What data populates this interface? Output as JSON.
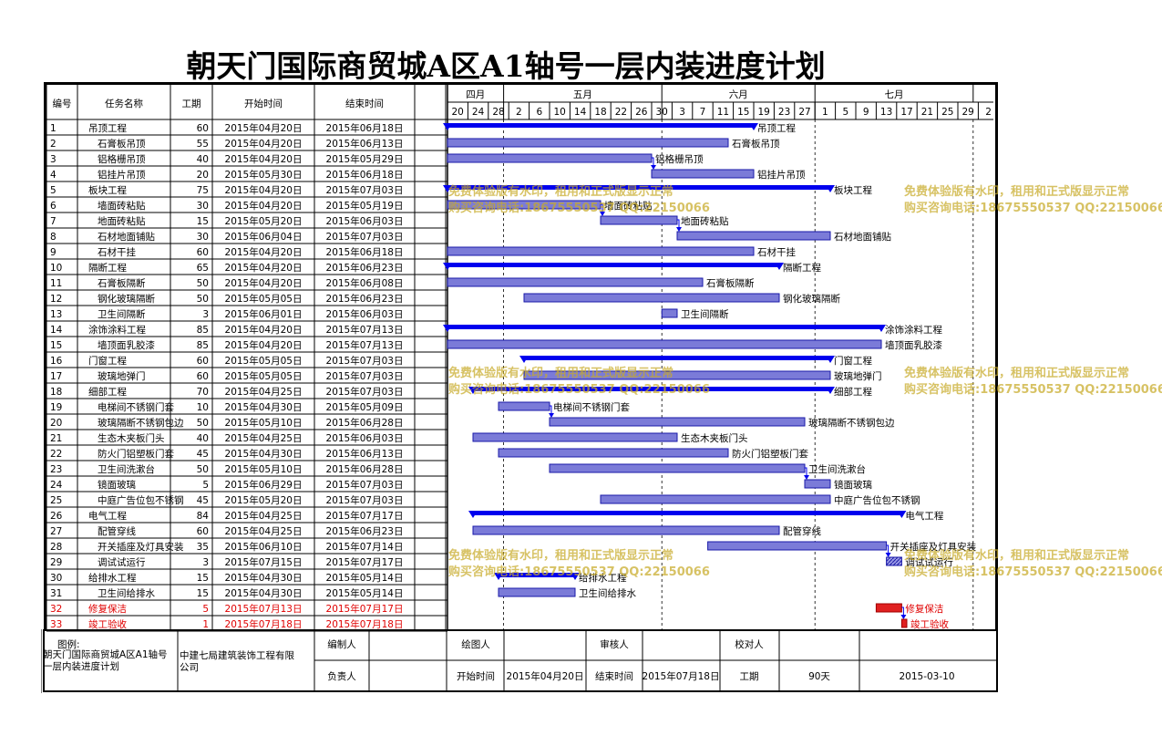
{
  "title": "朝天门国际商贸城A区A1轴号一层内装进度计划",
  "headers": {
    "no": "编号",
    "name": "任务名称",
    "dur": "工期",
    "start": "开始时间",
    "end": "结束时间"
  },
  "months": [
    {
      "label": "四月"
    },
    {
      "label": "五月"
    },
    {
      "label": "六月"
    },
    {
      "label": "七月"
    }
  ],
  "days": [
    "20",
    "24",
    "28",
    "2",
    "6",
    "10",
    "14",
    "18",
    "22",
    "26",
    "30",
    "3",
    "7",
    "11",
    "15",
    "19",
    "23",
    "27",
    "1",
    "5",
    "9",
    "13",
    "17",
    "21",
    "25",
    "29",
    "2"
  ],
  "timeline": {
    "start": "2015-04-20",
    "end": "2015-08-05"
  },
  "tasks": [
    {
      "no": "1",
      "name": "吊顶工程",
      "dur": "60",
      "start": "2015年04月20日",
      "end": "2015年06月18日",
      "s": "2015-04-20",
      "e": "2015-06-18",
      "summary": true,
      "level": 0,
      "label": "吊顶工程"
    },
    {
      "no": "2",
      "name": "石膏板吊顶",
      "dur": "55",
      "start": "2015年04月20日",
      "end": "2015年06月13日",
      "s": "2015-04-20",
      "e": "2015-06-13",
      "level": 1,
      "label": "石膏板吊顶"
    },
    {
      "no": "3",
      "name": "铝格栅吊顶",
      "dur": "40",
      "start": "2015年04月20日",
      "end": "2015年05月29日",
      "s": "2015-04-20",
      "e": "2015-05-29",
      "level": 1,
      "label": "铝格栅吊顶",
      "link": true
    },
    {
      "no": "4",
      "name": "铝挂片吊顶",
      "dur": "20",
      "start": "2015年05月30日",
      "end": "2015年06月18日",
      "s": "2015-05-30",
      "e": "2015-06-18",
      "level": 1,
      "label": "铝挂片吊顶"
    },
    {
      "no": "5",
      "name": "板块工程",
      "dur": "75",
      "start": "2015年04月20日",
      "end": "2015年07月03日",
      "s": "2015-04-20",
      "e": "2015-07-03",
      "summary": true,
      "level": 0,
      "label": "板块工程"
    },
    {
      "no": "6",
      "name": "墙面砖粘贴",
      "dur": "30",
      "start": "2015年04月20日",
      "end": "2015年05月19日",
      "s": "2015-04-20",
      "e": "2015-05-19",
      "level": 1,
      "label": "墙面砖粘贴",
      "link": true
    },
    {
      "no": "7",
      "name": "地面砖粘贴",
      "dur": "15",
      "start": "2015年05月20日",
      "end": "2015年06月03日",
      "s": "2015-05-20",
      "e": "2015-06-03",
      "level": 1,
      "label": "地面砖粘贴",
      "link": true
    },
    {
      "no": "8",
      "name": "石材地面铺贴",
      "dur": "30",
      "start": "2015年06月04日",
      "end": "2015年07月03日",
      "s": "2015-06-04",
      "e": "2015-07-03",
      "level": 1,
      "label": "石材地面铺贴"
    },
    {
      "no": "9",
      "name": "石材干挂",
      "dur": "60",
      "start": "2015年04月20日",
      "end": "2015年06月18日",
      "s": "2015-04-20",
      "e": "2015-06-18",
      "level": 1,
      "label": "石材干挂"
    },
    {
      "no": "10",
      "name": "隔断工程",
      "dur": "65",
      "start": "2015年04月20日",
      "end": "2015年06月23日",
      "s": "2015-04-20",
      "e": "2015-06-23",
      "summary": true,
      "level": 0,
      "label": "隔断工程"
    },
    {
      "no": "11",
      "name": "石膏板隔断",
      "dur": "50",
      "start": "2015年04月20日",
      "end": "2015年06月08日",
      "s": "2015-04-20",
      "e": "2015-06-08",
      "level": 1,
      "label": "石膏板隔断"
    },
    {
      "no": "12",
      "name": "钢化玻璃隔断",
      "dur": "50",
      "start": "2015年05月05日",
      "end": "2015年06月23日",
      "s": "2015-05-05",
      "e": "2015-06-23",
      "level": 1,
      "label": "钢化玻璃隔断"
    },
    {
      "no": "13",
      "name": "卫生间隔断",
      "dur": "3",
      "start": "2015年06月01日",
      "end": "2015年06月03日",
      "s": "2015-06-01",
      "e": "2015-06-03",
      "level": 1,
      "label": "卫生间隔断"
    },
    {
      "no": "14",
      "name": "涂饰涂料工程",
      "dur": "85",
      "start": "2015年04月20日",
      "end": "2015年07月13日",
      "s": "2015-04-20",
      "e": "2015-07-13",
      "summary": true,
      "level": 0,
      "label": "涂饰涂料工程"
    },
    {
      "no": "15",
      "name": "墙顶面乳胶漆",
      "dur": "85",
      "start": "2015年04月20日",
      "end": "2015年07月13日",
      "s": "2015-04-20",
      "e": "2015-07-13",
      "level": 1,
      "label": "墙顶面乳胶漆"
    },
    {
      "no": "16",
      "name": "门窗工程",
      "dur": "60",
      "start": "2015年05月05日",
      "end": "2015年07月03日",
      "s": "2015-05-05",
      "e": "2015-07-03",
      "summary": true,
      "level": 0,
      "label": "门窗工程"
    },
    {
      "no": "17",
      "name": "玻璃地弹门",
      "dur": "60",
      "start": "2015年05月05日",
      "end": "2015年07月03日",
      "s": "2015-05-05",
      "e": "2015-07-03",
      "level": 1,
      "label": "玻璃地弹门"
    },
    {
      "no": "18",
      "name": "细部工程",
      "dur": "70",
      "start": "2015年04月25日",
      "end": "2015年07月03日",
      "s": "2015-04-25",
      "e": "2015-07-03",
      "summary": true,
      "level": 0,
      "label": "细部工程"
    },
    {
      "no": "19",
      "name": "电梯间不锈钢门套",
      "dur": "10",
      "start": "2015年04月30日",
      "end": "2015年05月09日",
      "s": "2015-04-30",
      "e": "2015-05-09",
      "level": 1,
      "label": "电梯间不锈钢门套",
      "link": true
    },
    {
      "no": "20",
      "name": "玻璃隔断不锈钢包边",
      "dur": "50",
      "start": "2015年05月10日",
      "end": "2015年06月28日",
      "s": "2015-05-10",
      "e": "2015-06-28",
      "level": 1,
      "label": "玻璃隔断不锈钢包边"
    },
    {
      "no": "21",
      "name": "生态木夹板门头",
      "dur": "40",
      "start": "2015年04月25日",
      "end": "2015年06月03日",
      "s": "2015-04-25",
      "e": "2015-06-03",
      "level": 1,
      "label": "生态木夹板门头"
    },
    {
      "no": "22",
      "name": "防火门铝塑板门套",
      "dur": "45",
      "start": "2015年04月30日",
      "end": "2015年06月13日",
      "s": "2015-04-30",
      "e": "2015-06-13",
      "level": 1,
      "label": "防火门铝塑板门套"
    },
    {
      "no": "23",
      "name": "卫生间洗漱台",
      "dur": "50",
      "start": "2015年05月10日",
      "end": "2015年06月28日",
      "s": "2015-05-10",
      "e": "2015-06-28",
      "level": 1,
      "label": "卫生间洗漱台",
      "link": true
    },
    {
      "no": "24",
      "name": "镜面玻璃",
      "dur": "5",
      "start": "2015年06月29日",
      "end": "2015年07月03日",
      "s": "2015-06-29",
      "e": "2015-07-03",
      "level": 1,
      "label": "镜面玻璃"
    },
    {
      "no": "25",
      "name": "中庭广告位包不锈钢",
      "dur": "45",
      "start": "2015年05月20日",
      "end": "2015年07月03日",
      "s": "2015-05-20",
      "e": "2015-07-03",
      "level": 1,
      "label": "中庭广告位包不锈钢"
    },
    {
      "no": "26",
      "name": "电气工程",
      "dur": "84",
      "start": "2015年04月25日",
      "end": "2015年07月17日",
      "s": "2015-04-25",
      "e": "2015-07-17",
      "summary": true,
      "level": 0,
      "label": "电气工程"
    },
    {
      "no": "27",
      "name": "配管穿线",
      "dur": "60",
      "start": "2015年04月25日",
      "end": "2015年06月23日",
      "s": "2015-04-25",
      "e": "2015-06-23",
      "level": 1,
      "label": "配管穿线"
    },
    {
      "no": "28",
      "name": "开关插座及灯具安装",
      "dur": "35",
      "start": "2015年06月10日",
      "end": "2015年07月14日",
      "s": "2015-06-10",
      "e": "2015-07-14",
      "level": 1,
      "label": "开关插座及灯具安装",
      "link": true
    },
    {
      "no": "29",
      "name": "调试试运行",
      "dur": "3",
      "start": "2015年07月15日",
      "end": "2015年07月17日",
      "s": "2015-07-15",
      "e": "2015-07-17",
      "level": 1,
      "label": "调试试运行",
      "hatch": true
    },
    {
      "no": "30",
      "name": "给排水工程",
      "dur": "15",
      "start": "2015年04月30日",
      "end": "2015年05月14日",
      "s": "2015-04-30",
      "e": "2015-05-14",
      "summary": true,
      "level": 0,
      "label": "给排水工程"
    },
    {
      "no": "31",
      "name": "卫生间给排水",
      "dur": "15",
      "start": "2015年04月30日",
      "end": "2015年05月14日",
      "s": "2015-04-30",
      "e": "2015-05-14",
      "level": 1,
      "label": "卫生间给排水"
    },
    {
      "no": "32",
      "name": "修复保洁",
      "dur": "5",
      "start": "2015年07月13日",
      "end": "2015年07月17日",
      "s": "2015-07-13",
      "e": "2015-07-17",
      "level": 0,
      "label": "修复保洁",
      "red": true,
      "link": true
    },
    {
      "no": "33",
      "name": "竣工验收",
      "dur": "1",
      "start": "2015年07月18日",
      "end": "2015年07月18日",
      "s": "2015-07-18",
      "e": "2015-07-18",
      "level": 0,
      "label": "竣工验收",
      "red": true
    }
  ],
  "footer": {
    "legend_label": "图例:",
    "project_name": "朝天门国际商贸城A区A1轴号一层内装进度计划",
    "company": "中建七局建筑装饰工程有限公司",
    "author_label": "编制人",
    "drawer_label": "绘图人",
    "reviewer_label": "审核人",
    "checker_label": "校对人",
    "owner_label": "负责人",
    "start_label": "开始时间",
    "start_value": "2015年04月20日",
    "end_label": "结束时间",
    "end_value": "2015年07月18日",
    "period_label": "工期",
    "period_value": "90天",
    "date": "2015-03-10"
  },
  "watermark": {
    "line1": "免费体验版有水印，租用和正式版显示正常",
    "line2": "购买咨询电话:18675550537 QQ:22150066"
  },
  "colors": {
    "bar_fill": "#7b7bd8",
    "bar_border": "#1a1aa8",
    "summary": "#0000ee",
    "red": "#e02020",
    "text_red": "#e00000",
    "watermark": "#c8aa28"
  }
}
